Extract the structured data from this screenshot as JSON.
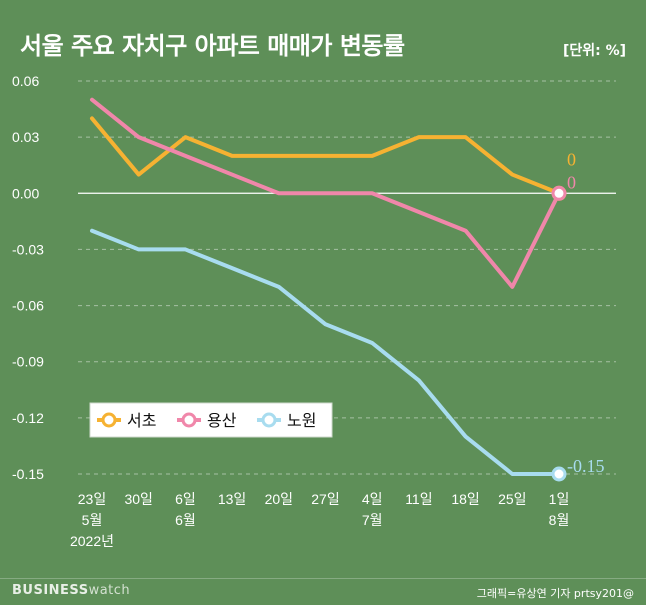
{
  "title": "서울 주요 자치구 아파트 매매가 변동률",
  "unit": "[단위: %]",
  "brand": {
    "bold": "BUSINESS",
    "light": "watch"
  },
  "credit": "그래픽=유상연 기자 prtsy201@",
  "chart_data": {
    "type": "line",
    "x_labels": [
      [
        "23일",
        "5월",
        "2022년"
      ],
      [
        "30일"
      ],
      [
        "6일",
        "6월"
      ],
      [
        "13일"
      ],
      [
        "20일"
      ],
      [
        "27일"
      ],
      [
        "4일",
        "7월"
      ],
      [
        "11일"
      ],
      [
        "18일"
      ],
      [
        "25일"
      ],
      [
        "1일",
        "8월"
      ]
    ],
    "y_ticks": [
      "0.06",
      "0.03",
      "0.00",
      "-0.03",
      "-0.06",
      "-0.09",
      "-0.12",
      "-0.15"
    ],
    "ylim": [
      -0.15,
      0.06
    ],
    "series": [
      {
        "name": "서초",
        "color": "#f6b232",
        "values": [
          0.04,
          0.01,
          0.03,
          0.02,
          0.02,
          0.02,
          0.02,
          0.03,
          0.03,
          0.01,
          0.0
        ],
        "end_label": "0"
      },
      {
        "name": "용산",
        "color": "#f087aa",
        "values": [
          0.05,
          0.03,
          0.02,
          0.01,
          0.0,
          0.0,
          0.0,
          -0.01,
          -0.02,
          -0.05,
          0.0
        ],
        "end_label": "0"
      },
      {
        "name": "노원",
        "color": "#a8dcef",
        "values": [
          -0.02,
          -0.03,
          -0.03,
          -0.04,
          -0.05,
          -0.07,
          -0.08,
          -0.1,
          -0.13,
          -0.15,
          -0.15
        ],
        "end_label": "-0.15"
      }
    ]
  }
}
